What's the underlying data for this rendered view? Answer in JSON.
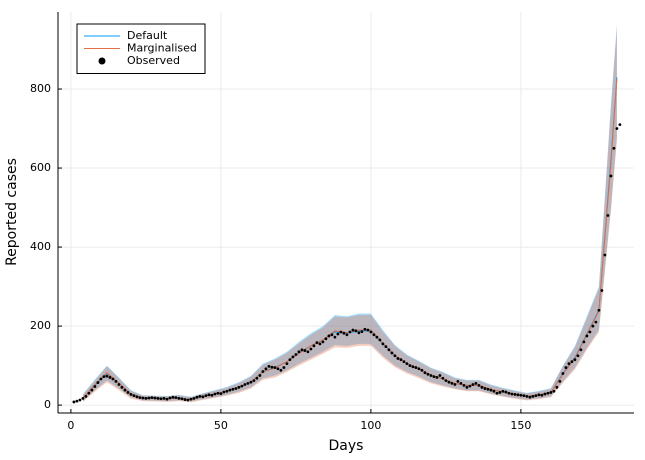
{
  "chart_data": {
    "type": "line",
    "xlabel": "Days",
    "ylabel": "Reported cases",
    "xlim": [
      -4.3,
      187.7
    ],
    "ylim": [
      -20,
      995
    ],
    "xticks": [
      0,
      50,
      100,
      150
    ],
    "yticks": [
      0,
      200,
      400,
      600,
      800
    ],
    "grid": true,
    "legend": "top-left",
    "x": [
      4,
      8,
      12,
      16,
      20,
      24,
      28,
      32,
      36,
      40,
      44,
      48,
      52,
      56,
      60,
      64,
      68,
      72,
      76,
      80,
      84,
      88,
      92,
      96,
      100,
      104,
      108,
      112,
      116,
      120,
      124,
      128,
      132,
      136,
      140,
      144,
      148,
      152,
      156,
      160,
      164,
      168,
      172,
      176,
      180,
      182
    ],
    "series": [
      {
        "name": "Default",
        "color": "#009afa",
        "values": [
          18,
          50,
          80,
          55,
          28,
          18,
          17,
          16,
          18,
          14,
          22,
          28,
          35,
          45,
          58,
          85,
          95,
          110,
          132,
          150,
          165,
          185,
          182,
          188,
          188,
          155,
          125,
          105,
          92,
          76,
          66,
          55,
          50,
          50,
          40,
          33,
          27,
          22,
          26,
          32,
          80,
          120,
          180,
          240,
          620,
          830
        ],
        "lower": [
          10,
          38,
          62,
          42,
          20,
          12,
          11,
          10,
          12,
          9,
          15,
          20,
          26,
          34,
          45,
          68,
          75,
          88,
          105,
          120,
          135,
          152,
          150,
          155,
          155,
          125,
          100,
          84,
          72,
          58,
          50,
          42,
          37,
          37,
          29,
          23,
          18,
          14,
          17,
          22,
          60,
          95,
          145,
          190,
          500,
          680
        ],
        "upper": [
          28,
          65,
          100,
          70,
          38,
          25,
          24,
          23,
          26,
          21,
          30,
          38,
          46,
          58,
          74,
          105,
          118,
          135,
          160,
          182,
          200,
          228,
          225,
          232,
          232,
          190,
          152,
          128,
          112,
          95,
          84,
          70,
          64,
          64,
          52,
          44,
          37,
          31,
          36,
          43,
          100,
          150,
          225,
          300,
          760,
          965
        ]
      },
      {
        "name": "Marginalised",
        "color": "#e26f46",
        "values": [
          18,
          52,
          82,
          56,
          28,
          18,
          17,
          16,
          18,
          14,
          22,
          28,
          35,
          45,
          58,
          84,
          94,
          110,
          130,
          150,
          165,
          188,
          183,
          190,
          190,
          157,
          126,
          106,
          92,
          76,
          66,
          55,
          50,
          50,
          40,
          33,
          27,
          22,
          26,
          32,
          78,
          118,
          178,
          238,
          610,
          825
        ],
        "lower": [
          8,
          34,
          58,
          38,
          16,
          10,
          9,
          8,
          10,
          7,
          13,
          18,
          24,
          31,
          42,
          64,
          70,
          84,
          100,
          115,
          130,
          146,
          145,
          150,
          150,
          120,
          96,
          80,
          68,
          55,
          47,
          40,
          35,
          35,
          27,
          21,
          16,
          12,
          15,
          20,
          56,
          90,
          140,
          185,
          490,
          670
        ],
        "upper": [
          26,
          62,
          98,
          68,
          36,
          24,
          23,
          22,
          25,
          20,
          29,
          36,
          44,
          56,
          72,
          102,
          115,
          132,
          156,
          178,
          196,
          224,
          222,
          228,
          228,
          186,
          150,
          126,
          110,
          93,
          82,
          68,
          62,
          62,
          50,
          42,
          35,
          30,
          34,
          41,
          98,
          146,
          220,
          296,
          750,
          955
        ]
      }
    ],
    "observed": {
      "name": "Observed",
      "color": "#000000",
      "x": [
        1,
        2,
        3,
        4,
        5,
        6,
        7,
        8,
        9,
        10,
        11,
        12,
        13,
        14,
        15,
        16,
        17,
        18,
        19,
        20,
        21,
        22,
        23,
        24,
        25,
        26,
        27,
        28,
        29,
        30,
        31,
        32,
        33,
        34,
        35,
        36,
        37,
        38,
        39,
        40,
        41,
        42,
        43,
        44,
        45,
        46,
        47,
        48,
        49,
        50,
        51,
        52,
        53,
        54,
        55,
        56,
        57,
        58,
        59,
        60,
        61,
        62,
        63,
        64,
        65,
        66,
        67,
        68,
        69,
        70,
        71,
        72,
        73,
        74,
        75,
        76,
        77,
        78,
        79,
        80,
        81,
        82,
        83,
        84,
        85,
        86,
        87,
        88,
        89,
        90,
        91,
        92,
        93,
        94,
        95,
        96,
        97,
        98,
        99,
        100,
        101,
        102,
        103,
        104,
        105,
        106,
        107,
        108,
        109,
        110,
        111,
        112,
        113,
        114,
        115,
        116,
        117,
        118,
        119,
        120,
        121,
        122,
        123,
        124,
        125,
        126,
        127,
        128,
        129,
        130,
        131,
        132,
        133,
        134,
        135,
        136,
        137,
        138,
        139,
        140,
        141,
        142,
        143,
        144,
        145,
        146,
        147,
        148,
        149,
        150,
        151,
        152,
        153,
        154,
        155,
        156,
        157,
        158,
        159,
        160,
        161,
        162,
        163,
        164,
        165,
        166,
        167,
        168,
        169,
        170,
        171,
        172,
        173,
        174,
        175,
        176,
        177,
        178,
        179,
        180,
        181,
        182,
        183
      ],
      "values": [
        8,
        10,
        13,
        17,
        22,
        30,
        38,
        47,
        57,
        66,
        72,
        73,
        70,
        66,
        60,
        52,
        45,
        38,
        32,
        27,
        24,
        21,
        19,
        18,
        17,
        18,
        19,
        18,
        17,
        16,
        17,
        15,
        18,
        20,
        19,
        17,
        16,
        14,
        13,
        15,
        17,
        20,
        22,
        21,
        24,
        26,
        25,
        28,
        30,
        29,
        33,
        35,
        38,
        40,
        42,
        45,
        48,
        52,
        55,
        58,
        62,
        68,
        75,
        85,
        92,
        98,
        96,
        95,
        92,
        88,
        95,
        105,
        115,
        122,
        128,
        135,
        140,
        138,
        135,
        142,
        150,
        158,
        155,
        160,
        168,
        175,
        178,
        172,
        180,
        185,
        182,
        178,
        185,
        190,
        188,
        183,
        186,
        192,
        190,
        185,
        178,
        172,
        165,
        155,
        148,
        140,
        132,
        125,
        118,
        115,
        110,
        105,
        100,
        97,
        95,
        92,
        88,
        82,
        78,
        75,
        72,
        70,
        75,
        68,
        62,
        58,
        55,
        52,
        60,
        55,
        50,
        45,
        48,
        52,
        55,
        50,
        45,
        42,
        40,
        38,
        35,
        30,
        32,
        35,
        33,
        30,
        28,
        27,
        26,
        25,
        24,
        22,
        20,
        22,
        24,
        26,
        25,
        28,
        30,
        32,
        35,
        45,
        60,
        80,
        95,
        105,
        110,
        115,
        125,
        140,
        160,
        175,
        185,
        200,
        210,
        240,
        290,
        380,
        480,
        580,
        650,
        700,
        710
      ]
    }
  }
}
